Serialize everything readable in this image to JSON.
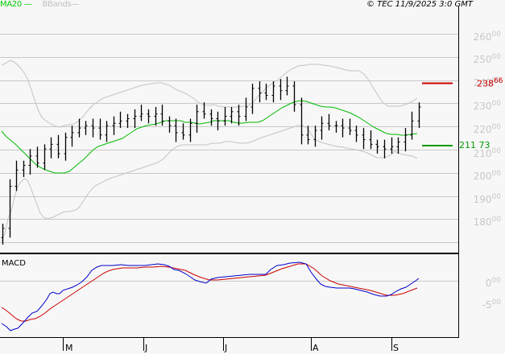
{
  "legend": {
    "ma_label": "MA20",
    "ma_swatch": "—",
    "bb_label": "BBands",
    "bb_swatch": "—"
  },
  "copyright": "© TEC 11/9/2025 3:0 GMT",
  "macd_pane": {
    "title": "MACD"
  },
  "y_axis": {
    "ticks": [
      {
        "int": "260",
        "dec": "00",
        "y": 47
      },
      {
        "int": "250",
        "dec": "00",
        "y": 75
      },
      {
        "int": "240",
        "dec": "00",
        "y": 104
      },
      {
        "int": "230",
        "dec": "00",
        "y": 133
      },
      {
        "int": "220",
        "dec": "00",
        "y": 162
      },
      {
        "int": "210",
        "dec": "00",
        "y": 192
      },
      {
        "int": "200",
        "dec": "00",
        "y": 220
      },
      {
        "int": "190",
        "dec": "00",
        "y": 249
      },
      {
        "int": "180",
        "dec": "00",
        "y": 277
      }
    ]
  },
  "macd_axis": {
    "ticks": [
      {
        "int": "0",
        "dec": "00",
        "y": 353
      },
      {
        "int": "-5",
        "dec": "00",
        "y": 380
      }
    ]
  },
  "levels": {
    "resistance": {
      "int": "238",
      "dec": "66",
      "color": "#cc0000"
    },
    "support": {
      "int": "211",
      "dec": "73",
      "color": "#009900"
    }
  },
  "x_axis": {
    "months": [
      {
        "label": "M",
        "x": 79
      },
      {
        "label": "J",
        "x": 178
      },
      {
        "label": "J",
        "x": 277
      },
      {
        "label": "A",
        "x": 386
      },
      {
        "label": "S",
        "x": 486
      }
    ]
  },
  "colors": {
    "background": "#f7f7f7",
    "grid": "#c8c8c8",
    "ma20": "#00bb00",
    "bbands": "#c0c0c0",
    "macd": "#0000cc",
    "signal": "#cc0000",
    "resistance": "#cc0000",
    "support": "#009900"
  },
  "chart_data": [
    {
      "type": "ohlc",
      "title": "Price (OHLC bars) with MA20 and Bollinger Bands",
      "xlabel": "",
      "ylabel": "",
      "ylim": [
        175,
        265
      ],
      "x_ticks": [
        "M",
        "J",
        "J",
        "A",
        "S"
      ],
      "grid": true,
      "legend": [
        "MA20",
        "BBands"
      ],
      "annotations": [
        {
          "type": "hline",
          "value": 238.66,
          "color": "#cc0000",
          "label": "238.66"
        },
        {
          "type": "hline",
          "value": 211.73,
          "color": "#009900",
          "label": "211.73"
        }
      ],
      "series": [
        {
          "name": "Close (approx)",
          "values": [
            178,
            196,
            203,
            205,
            209,
            206,
            212,
            214,
            210,
            217,
            219,
            221,
            222,
            221,
            218,
            222,
            223,
            224,
            225,
            226,
            227,
            226,
            227,
            224,
            222,
            219,
            218,
            223,
            228,
            227,
            225,
            224,
            226,
            228,
            226,
            230,
            238,
            236,
            235,
            239,
            237,
            239,
            231,
            218,
            216,
            220,
            223,
            222,
            222,
            221,
            220,
            218,
            216,
            214,
            213,
            212,
            213,
            215,
            218,
            224,
            230
          ]
        },
        {
          "name": "MA20",
          "values": [
            220,
            217,
            214,
            210,
            207,
            205,
            206,
            210,
            214,
            217,
            219,
            221,
            223,
            224,
            224,
            224,
            223,
            222,
            222,
            222,
            222,
            223,
            224,
            226,
            228,
            230,
            231,
            231,
            229,
            226,
            223,
            221,
            219,
            219,
            219
          ]
        },
        {
          "name": "BBands Upper",
          "values": [
            240,
            241,
            238,
            231,
            223,
            222,
            226,
            228,
            229,
            231,
            232,
            233,
            232,
            232,
            232,
            232,
            234,
            239,
            241,
            244,
            247,
            248,
            248,
            247,
            243,
            236,
            228,
            227,
            229,
            229
          ]
        },
        {
          "name": "BBands Lower",
          "values": [
            200,
            192,
            185,
            183,
            183,
            185,
            188,
            193,
            199,
            206,
            210,
            212,
            212,
            212,
            212,
            212,
            213,
            214,
            218,
            220,
            218,
            216,
            214,
            212,
            211,
            211,
            209,
            209,
            210,
            209
          ]
        }
      ]
    },
    {
      "type": "line",
      "title": "MACD",
      "xlabel": "",
      "ylabel": "",
      "ylim": [
        -8,
        3
      ],
      "y_ticks": [
        "0.00",
        "-5.00"
      ],
      "grid": true,
      "series": [
        {
          "name": "MACD",
          "color": "#0000cc",
          "values": [
            -6,
            -7,
            -6.5,
            -5,
            -3.5,
            -2,
            -0.8,
            0.5,
            1.5,
            2.2,
            2.6,
            2.7,
            2.7,
            2.6,
            1.8,
            1.0,
            0.5,
            0.3,
            0.6,
            0.9,
            1.0,
            1.6,
            2.3,
            2.8,
            2.7,
            0.5,
            -0.8,
            -0.9,
            -1.0,
            -1.3,
            -1.5,
            -1.4,
            0.5
          ]
        },
        {
          "name": "Signal",
          "color": "#cc0000",
          "values": [
            -3.5,
            -5,
            -5.5,
            -5,
            -4,
            -3,
            -1.8,
            -0.5,
            0.8,
            1.7,
            2.2,
            2.5,
            2.6,
            2.6,
            2.2,
            1.4,
            0.7,
            0.4,
            0.5,
            0.6,
            0.8,
            1.2,
            1.7,
            2.2,
            2.6,
            2.0,
            0.5,
            -0.5,
            -0.9,
            -1.1,
            -1.3,
            -1.4,
            -0.4
          ]
        }
      ]
    }
  ]
}
